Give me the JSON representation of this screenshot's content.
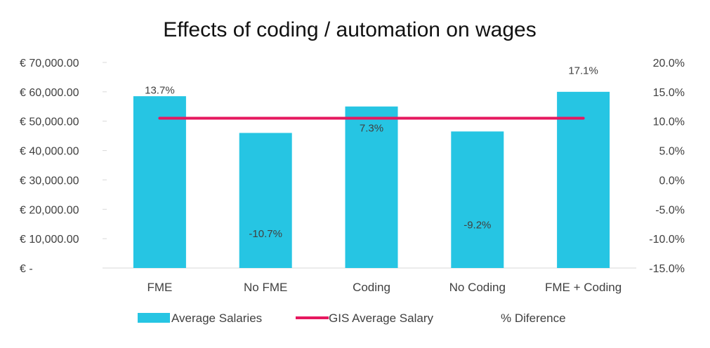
{
  "chart_data": {
    "type": "bar",
    "title": "Effects of coding / automation on wages",
    "categories": [
      "FME",
      "No FME",
      "Coding",
      "No Coding",
      "FME + Coding"
    ],
    "series": [
      {
        "name": "Average Salaries",
        "kind": "bar",
        "axis": "left",
        "color": "#26C5E3",
        "values": [
          58500,
          46000,
          55000,
          46500,
          60000
        ]
      },
      {
        "name": "GIS Average Salary",
        "kind": "line",
        "axis": "left",
        "color": "#E6185F",
        "values": [
          51000,
          51000,
          51000,
          51000,
          51000
        ]
      },
      {
        "name": "% Diference",
        "kind": "labels",
        "axis": "right",
        "values": [
          13.7,
          -10.7,
          7.3,
          -9.2,
          17.1
        ],
        "labels": [
          "13.7%",
          "-10.7%",
          "7.3%",
          "-9.2%",
          "17.1%"
        ]
      }
    ],
    "left_axis": {
      "ylim": [
        0,
        70000
      ],
      "ticks": [
        {
          "value": 0,
          "label": "€ -"
        },
        {
          "value": 10000,
          "label": "€ 10,000.00"
        },
        {
          "value": 20000,
          "label": "€ 20,000.00"
        },
        {
          "value": 30000,
          "label": "€ 30,000.00"
        },
        {
          "value": 40000,
          "label": "€ 40,000.00"
        },
        {
          "value": 50000,
          "label": "€ 50,000.00"
        },
        {
          "value": 60000,
          "label": "€ 60,000.00"
        },
        {
          "value": 70000,
          "label": "€ 70,000.00"
        }
      ]
    },
    "right_axis": {
      "ylim": [
        -15,
        20
      ],
      "ticks": [
        {
          "value": -15,
          "label": "-15.0%"
        },
        {
          "value": -10,
          "label": "-10.0%"
        },
        {
          "value": -5,
          "label": "-5.0%"
        },
        {
          "value": 0,
          "label": "0.0%"
        },
        {
          "value": 5,
          "label": "5.0%"
        },
        {
          "value": 10,
          "label": "10.0%"
        },
        {
          "value": 15,
          "label": "15.0%"
        },
        {
          "value": 20,
          "label": "20.0%"
        }
      ]
    },
    "grid": false,
    "legend": "bottom"
  }
}
